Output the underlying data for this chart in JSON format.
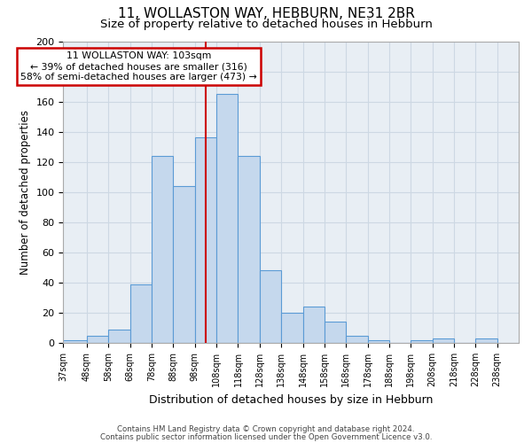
{
  "title": "11, WOLLASTON WAY, HEBBURN, NE31 2BR",
  "subtitle": "Size of property relative to detached houses in Hebburn",
  "xlabel": "Distribution of detached houses by size in Hebburn",
  "ylabel": "Number of detached properties",
  "bin_labels": [
    "37sqm",
    "48sqm",
    "58sqm",
    "68sqm",
    "78sqm",
    "88sqm",
    "98sqm",
    "108sqm",
    "118sqm",
    "128sqm",
    "138sqm",
    "148sqm",
    "158sqm",
    "168sqm",
    "178sqm",
    "188sqm",
    "198sqm",
    "208sqm",
    "218sqm",
    "228sqm",
    "238sqm"
  ],
  "bar_heights": [
    2,
    5,
    9,
    39,
    124,
    104,
    136,
    165,
    124,
    48,
    20,
    24,
    14,
    5,
    2,
    0,
    2,
    3,
    0,
    3
  ],
  "bin_edges": [
    37,
    48,
    58,
    68,
    78,
    88,
    98,
    108,
    118,
    128,
    138,
    148,
    158,
    168,
    178,
    188,
    198,
    208,
    218,
    228,
    238
  ],
  "bar_color": "#c5d8ed",
  "bar_edge_color": "#5b9bd5",
  "red_line_x": 103,
  "annotation_line1": "11 WOLLASTON WAY: 103sqm",
  "annotation_line2": "← 39% of detached houses are smaller (316)",
  "annotation_line3": "58% of semi-detached houses are larger (473) →",
  "annotation_box_color": "#ffffff",
  "annotation_box_border": "#cc0000",
  "ylim": [
    0,
    200
  ],
  "yticks": [
    0,
    20,
    40,
    60,
    80,
    100,
    120,
    140,
    160,
    180,
    200
  ],
  "grid_color": "#cdd8e3",
  "background_color": "#e8eef4",
  "footer_line1": "Contains HM Land Registry data © Crown copyright and database right 2024.",
  "footer_line2": "Contains public sector information licensed under the Open Government Licence v3.0.",
  "title_fontsize": 11,
  "subtitle_fontsize": 9.5
}
